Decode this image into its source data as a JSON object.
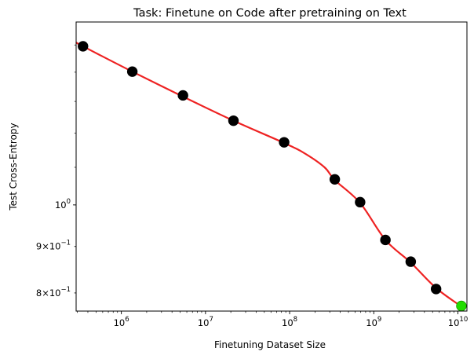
{
  "chart_data": {
    "type": "scatter",
    "title": "Task: Finetune on Code after pretraining on Text",
    "xlabel": "Finetuning Dataset Size",
    "ylabel": "Test Cross-Entropy",
    "xscale": "log",
    "yscale": "log",
    "xlim": [
      290000,
      12800000000
    ],
    "ylim": [
      0.764,
      1.59
    ],
    "grid": false,
    "legend": "none",
    "x_ticks": [
      {
        "value": 1000000,
        "base": "10",
        "exp": "6"
      },
      {
        "value": 10000000,
        "base": "10",
        "exp": "7"
      },
      {
        "value": 100000000,
        "base": "10",
        "exp": "8"
      },
      {
        "value": 1000000000,
        "base": "10",
        "exp": "9"
      },
      {
        "value": 10000000000,
        "base": "10",
        "exp": "10"
      }
    ],
    "y_ticks": [
      {
        "value": 1.0,
        "base": "10",
        "exp": "0",
        "coef": ""
      },
      {
        "value": 0.9,
        "base": "10",
        "exp": "−1",
        "coef": "9×"
      },
      {
        "value": 0.8,
        "base": "10",
        "exp": "−1",
        "coef": "8×"
      }
    ],
    "series": [
      {
        "kind": "points",
        "color": "#000000",
        "x": [
          350000,
          1350000,
          5400000,
          21500000,
          86000000,
          344000000,
          688000000,
          1376000000,
          2750000000,
          5500000000
        ],
        "y": [
          1.495,
          1.402,
          1.32,
          1.238,
          1.172,
          1.067,
          1.007,
          0.915,
          0.866,
          0.808
        ]
      },
      {
        "kind": "points",
        "color": "#22dd00",
        "x": [
          11000000000
        ],
        "y": [
          0.774
        ]
      },
      {
        "kind": "line",
        "color": "#ee2222",
        "x": [
          290000,
          350000,
          1350000,
          5400000,
          21500000,
          86000000,
          150000000,
          260000000,
          344000000,
          688000000,
          1376000000,
          2750000000,
          5500000000,
          11000000000,
          12000000000
        ],
        "y": [
          1.51,
          1.495,
          1.402,
          1.316,
          1.238,
          1.17,
          1.14,
          1.1,
          1.065,
          1.005,
          0.915,
          0.864,
          0.81,
          0.773,
          0.77
        ]
      }
    ]
  }
}
